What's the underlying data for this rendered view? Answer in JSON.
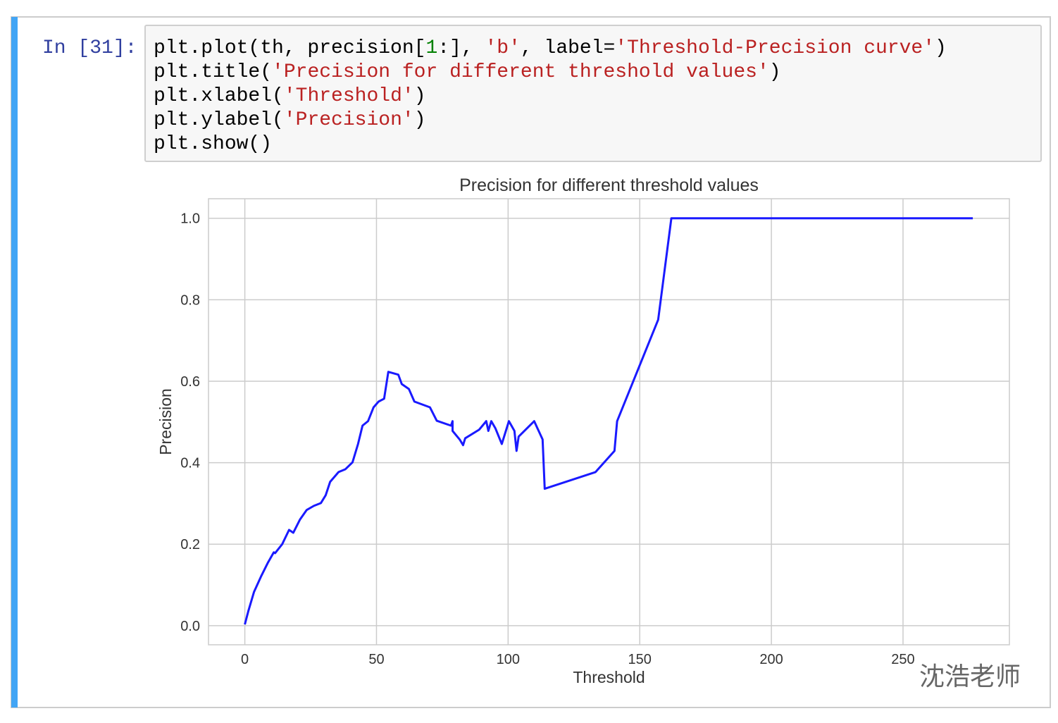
{
  "cell": {
    "prompt": "In [31]:",
    "prompt_color": "#303f9f",
    "code": [
      [
        {
          "text": "plt.plot(th, precision[",
          "color": "#000000"
        },
        {
          "text": "1",
          "color": "#008000"
        },
        {
          "text": ":], ",
          "color": "#000000"
        },
        {
          "text": "'b'",
          "color": "#ba2121"
        },
        {
          "text": ", label=",
          "color": "#000000"
        },
        {
          "text": "'Threshold-Precision curve'",
          "color": "#ba2121"
        },
        {
          "text": ")",
          "color": "#000000"
        }
      ],
      [
        {
          "text": "plt.title(",
          "color": "#000000"
        },
        {
          "text": "'Precision for different threshold values'",
          "color": "#ba2121"
        },
        {
          "text": ")",
          "color": "#000000"
        }
      ],
      [
        {
          "text": "plt.xlabel(",
          "color": "#000000"
        },
        {
          "text": "'Threshold'",
          "color": "#ba2121"
        },
        {
          "text": ")",
          "color": "#000000"
        }
      ],
      [
        {
          "text": "plt.ylabel(",
          "color": "#000000"
        },
        {
          "text": "'Precision'",
          "color": "#ba2121"
        },
        {
          "text": ")",
          "color": "#000000"
        }
      ],
      [
        {
          "text": "plt.show()",
          "color": "#000000"
        }
      ]
    ]
  },
  "chart_data": {
    "type": "line",
    "title": "Precision for different threshold values",
    "x_label": "Threshold",
    "y_label": "Precision",
    "color": "#1a1aff",
    "grid": true,
    "x": [
      0,
      1.3,
      3.5,
      6.1,
      8.8,
      11,
      11.5,
      14.2,
      16.8,
      18.4,
      20.9,
      23.5,
      26.2,
      28.9,
      30.7,
      32.4,
      35.6,
      38.2,
      40.9,
      43,
      44.7,
      46.8,
      48.9,
      50.8,
      52.9,
      54.5,
      58.3,
      59.6,
      62.3,
      64.4,
      70.3,
      72.9,
      78.3,
      78.9,
      78.9,
      81.6,
      82.9,
      83.7,
      89,
      91.7,
      92.5,
      93.6,
      95.2,
      97.6,
      100.3,
      102.4,
      103.2,
      104,
      109.9,
      113.1,
      113.9,
      133.2,
      140.4,
      141.4,
      157,
      162,
      276.5
    ],
    "values": [
      0.003,
      0.035,
      0.083,
      0.12,
      0.155,
      0.18,
      0.178,
      0.2,
      0.235,
      0.228,
      0.26,
      0.284,
      0.294,
      0.301,
      0.32,
      0.353,
      0.377,
      0.384,
      0.401,
      0.446,
      0.491,
      0.502,
      0.536,
      0.55,
      0.557,
      0.623,
      0.616,
      0.593,
      0.581,
      0.55,
      0.536,
      0.503,
      0.491,
      0.502,
      0.478,
      0.457,
      0.443,
      0.46,
      0.481,
      0.502,
      0.478,
      0.502,
      0.484,
      0.446,
      0.502,
      0.478,
      0.429,
      0.464,
      0.502,
      0.457,
      0.336,
      0.377,
      0.429,
      0.502,
      0.751,
      1.0,
      1.0
    ],
    "xlim": [
      -13.8,
      290.4
    ],
    "ylim": [
      -0.047,
      1.048
    ],
    "xticks": [
      0,
      50,
      100,
      150,
      200,
      250
    ],
    "yticks": [
      {
        "value": 0,
        "label": "0.0"
      },
      0.2,
      0.4,
      0.6,
      0.8,
      {
        "value": 1,
        "label": "1.0"
      }
    ]
  },
  "watermark": "沈浩老师"
}
